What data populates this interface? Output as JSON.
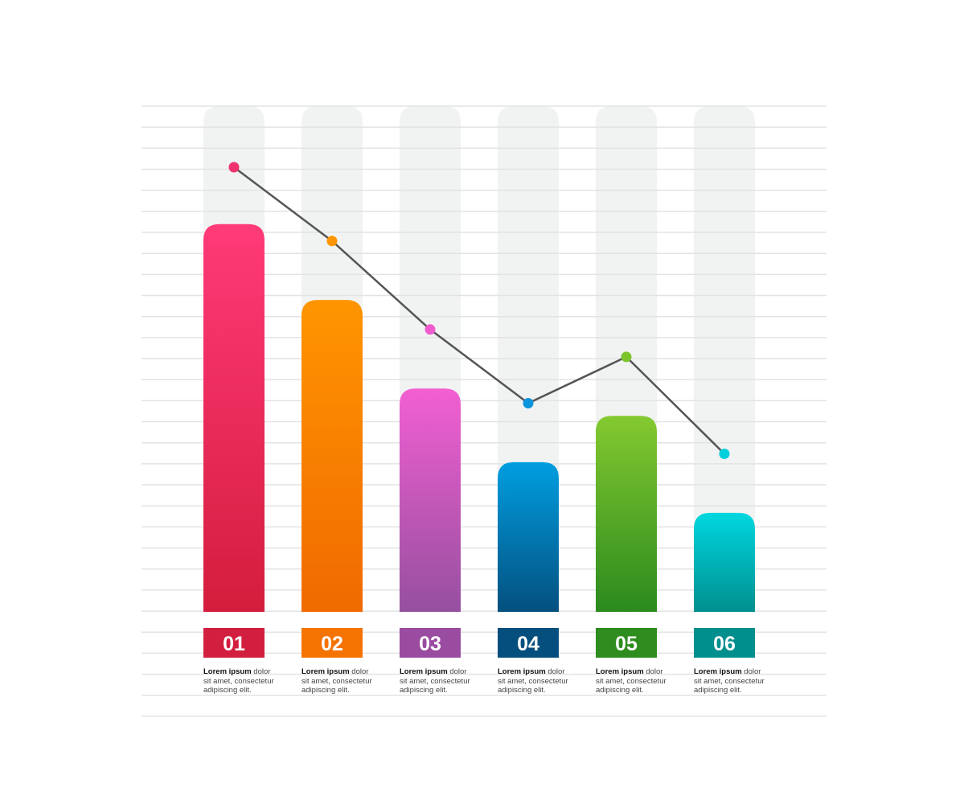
{
  "chart_data": {
    "type": "bar",
    "title": "",
    "xlabel": "",
    "ylabel": "",
    "ylim": [
      0,
      24
    ],
    "grid": true,
    "categories": [
      "01",
      "02",
      "03",
      "04",
      "05",
      "06"
    ],
    "series": [
      {
        "type": "bar",
        "values": [
          18.4,
          14.8,
          10.6,
          7.1,
          9.3,
          4.7
        ]
      },
      {
        "type": "line",
        "values": [
          21.1,
          17.6,
          13.4,
          9.9,
          12.1,
          7.5
        ],
        "color": "#555555"
      }
    ],
    "background_bar_value": 24,
    "colors": {
      "bar_top": [
        "#ff3a78",
        "#ff9500",
        "#f25fd2",
        "#009ee0",
        "#84c930",
        "#00d7df"
      ],
      "bar_bottom": [
        "#d41d3d",
        "#f06a00",
        "#9650a0",
        "#04507f",
        "#2b8a1e",
        "#008f8f"
      ],
      "label_bg": [
        "#d31f3f",
        "#f57300",
        "#9a4ca0",
        "#054f7e",
        "#2f8c1e",
        "#008f8d"
      ],
      "dots": [
        "#f0326e",
        "#ff9500",
        "#f05ccf",
        "#0a95dc",
        "#7cc42c",
        "#00cfdc"
      ],
      "background_bar": "#f1f2f2",
      "gridline": "#e2e3e3"
    },
    "captions": [
      {
        "bold": "Lorem ipsum",
        "rest": " dolor",
        "line2": "sit amet, consectetur",
        "line3": "adipiscing elit."
      },
      {
        "bold": "Lorem ipsum",
        "rest": " dolor",
        "line2": "sit amet, consectetur",
        "line3": "adipiscing elit."
      },
      {
        "bold": "Lorem ipsum",
        "rest": " dolor",
        "line2": "sit amet, consectetur",
        "line3": "adipiscing elit."
      },
      {
        "bold": "Lorem ipsum",
        "rest": " dolor",
        "line2": "sit amet, consectetur",
        "line3": "adipiscing elit."
      },
      {
        "bold": "Lorem ipsum",
        "rest": " dolor",
        "line2": "sit amet, consectetur",
        "line3": "adipiscing elit."
      },
      {
        "bold": "Lorem ipsum",
        "rest": " dolor",
        "line2": "sit amet, consectetur",
        "line3": "adipiscing elit."
      }
    ]
  }
}
